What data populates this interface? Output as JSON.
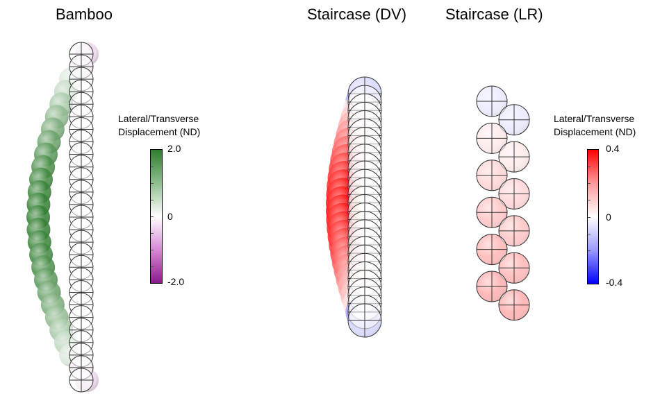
{
  "panels": {
    "bamboo": {
      "title": "Bamboo"
    },
    "staircase_dv": {
      "title": "Staircase (DV)"
    },
    "staircase_lr": {
      "title": "Staircase (LR)"
    }
  },
  "colorbars": {
    "left": {
      "label_line1": "Lateral/Transverse",
      "label_line2": "Displacement (ND)",
      "max_label": "2.0",
      "mid_label": "0",
      "min_label": "-2.0",
      "max": 2.0,
      "min": -2.0,
      "color_max": "#2e7d2e",
      "color_mid": "#ffffff",
      "color_min": "#8b1a8b"
    },
    "right": {
      "label_line1": "Lateral/Transverse",
      "label_line2": "Displacement (ND)",
      "max_label": "0.4",
      "mid_label": "0",
      "min_label": "-0.4",
      "max": 0.4,
      "min": -0.4,
      "color_max": "#ff0000",
      "color_mid": "#ffffff",
      "color_min": "#0000ff"
    }
  }
}
